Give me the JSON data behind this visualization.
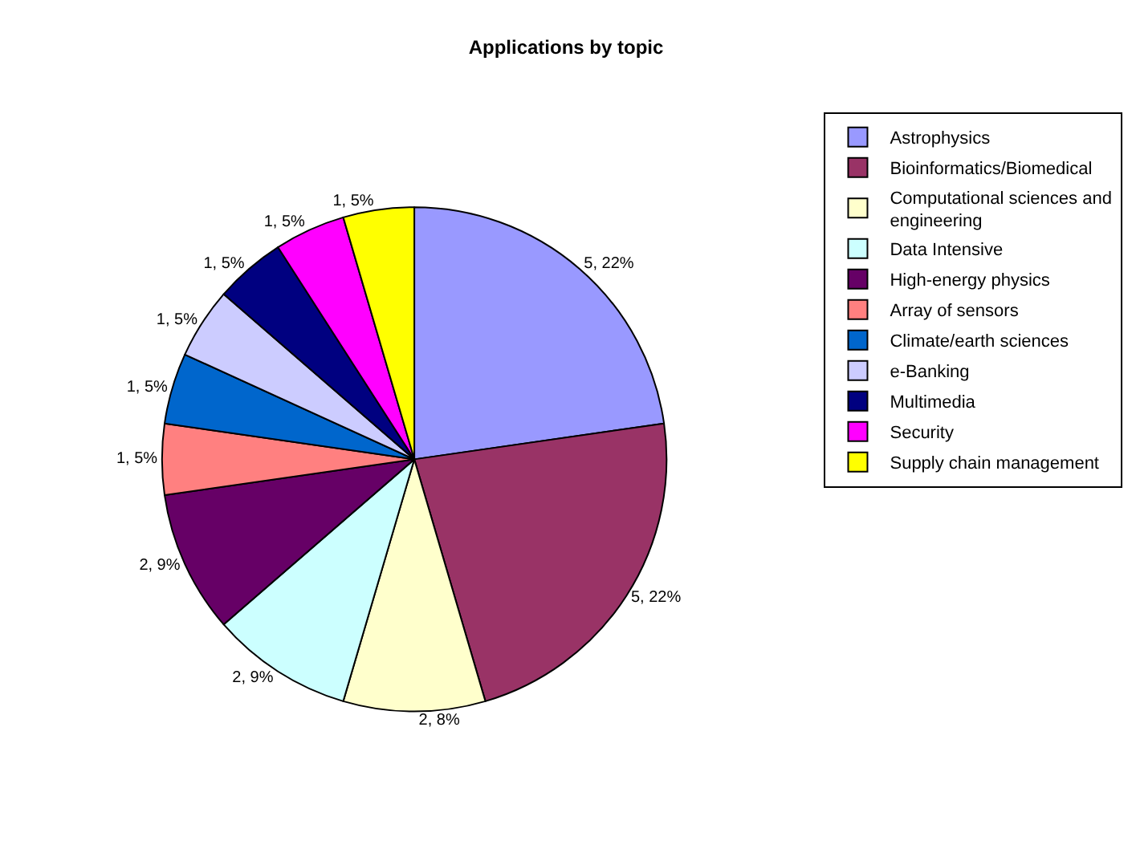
{
  "chart_data": {
    "type": "pie",
    "title": "Applications by topic",
    "categories": [
      "Astrophysics",
      "Bioinformatics/Biomedical",
      "Computational sciences and engineering",
      "Data Intensive",
      "High-energy physics",
      "Array of sensors",
      "Climate/earth sciences",
      "e-Banking",
      "Multimedia",
      "Security",
      "Supply chain management"
    ],
    "values": [
      5,
      5,
      2,
      2,
      2,
      1,
      1,
      1,
      1,
      1,
      1
    ],
    "colors": [
      "#9999ff",
      "#993366",
      "#ffffcc",
      "#ccffff",
      "#660066",
      "#ff8080",
      "#0066cc",
      "#ccccff",
      "#000080",
      "#ff00ff",
      "#ffff00"
    ],
    "value_labels": [
      "5, 22%",
      "5, 22%",
      "2, 8%",
      "2, 9%",
      "2, 9%",
      "1, 5%",
      "1, 5%",
      "1, 5%",
      "1, 5%",
      "1, 5%",
      "1, 5%"
    ],
    "legend": "right"
  }
}
